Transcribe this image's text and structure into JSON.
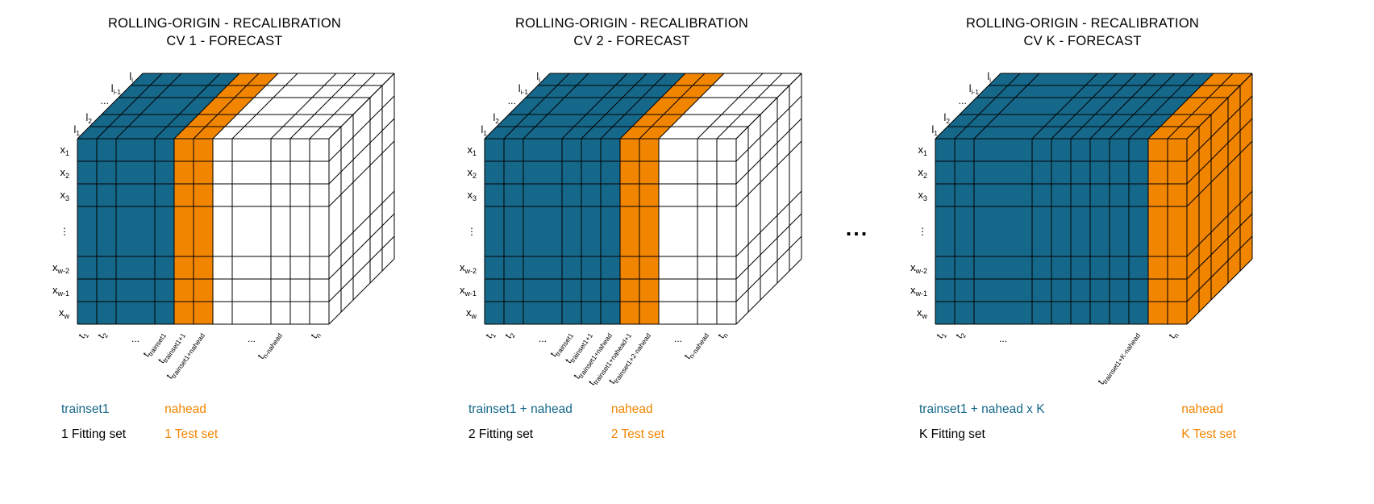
{
  "colors": {
    "train": "#16688a",
    "test": "#f28500",
    "empty": "#ffffff",
    "grid": "#000000"
  },
  "separator": "...",
  "shared": {
    "row_labels": [
      {
        "m": "x",
        "s": "1"
      },
      {
        "m": "x",
        "s": "2"
      },
      {
        "m": "x",
        "s": "3"
      },
      {
        "m": "⋮",
        "s": ""
      },
      {
        "m": "x",
        "s": "w-2"
      },
      {
        "m": "x",
        "s": "w-1"
      },
      {
        "m": "x",
        "s": "w"
      }
    ],
    "depth_labels": [
      {
        "m": "l",
        "s": "1"
      },
      {
        "m": "l",
        "s": "2"
      },
      {
        "m": "...",
        "s": ""
      },
      {
        "m": "l",
        "s": "i-1"
      },
      {
        "m": "l",
        "s": "i"
      }
    ]
  },
  "panels": [
    {
      "id": "cv1",
      "title_line1": "ROLLING-ORIGIN - RECALIBRATION",
      "title_line2": "CV 1 - FORECAST",
      "columns": [
        {
          "w": 1,
          "c": "train"
        },
        {
          "w": 1,
          "c": "train"
        },
        {
          "w": 2,
          "c": "train"
        },
        {
          "w": 1,
          "c": "train"
        },
        {
          "w": 1,
          "c": "test"
        },
        {
          "w": 1,
          "c": "test"
        },
        {
          "w": 1,
          "c": "empty"
        },
        {
          "w": 2,
          "c": "empty"
        },
        {
          "w": 1,
          "c": "empty"
        },
        {
          "w": 1,
          "c": "empty"
        },
        {
          "w": 1,
          "c": "empty"
        }
      ],
      "ticks": [
        {
          "m": "t",
          "s": "1",
          "col": 0
        },
        {
          "m": "t",
          "s": "2",
          "col": 1
        },
        {
          "m": "...",
          "s": "",
          "col": 2
        },
        {
          "m": "t",
          "s": "trainset1",
          "col": 3
        },
        {
          "m": "t",
          "s": "trainset1+1",
          "col": 4
        },
        {
          "m": "t",
          "s": "trainset1+nahead",
          "col": 5
        },
        {
          "m": "...",
          "s": "",
          "col": 7
        },
        {
          "m": "t",
          "s": "n-nahead",
          "col": 8
        },
        {
          "m": "t",
          "s": "n",
          "col": 10
        }
      ],
      "legend": {
        "train": "trainset1",
        "test": "nahead",
        "fitting": "1 Fitting set",
        "testing": "1 Test set"
      }
    },
    {
      "id": "cv2",
      "title_line1": "ROLLING-ORIGIN - RECALIBRATION",
      "title_line2": "CV 2 - FORECAST",
      "columns": [
        {
          "w": 1,
          "c": "train"
        },
        {
          "w": 1,
          "c": "train"
        },
        {
          "w": 2,
          "c": "train"
        },
        {
          "w": 1,
          "c": "train"
        },
        {
          "w": 1,
          "c": "train"
        },
        {
          "w": 1,
          "c": "train"
        },
        {
          "w": 1,
          "c": "test"
        },
        {
          "w": 1,
          "c": "test"
        },
        {
          "w": 2,
          "c": "empty"
        },
        {
          "w": 1,
          "c": "empty"
        },
        {
          "w": 1,
          "c": "empty"
        }
      ],
      "ticks": [
        {
          "m": "t",
          "s": "1",
          "col": 0
        },
        {
          "m": "t",
          "s": "2",
          "col": 1
        },
        {
          "m": "...",
          "s": "",
          "col": 2
        },
        {
          "m": "t",
          "s": "trainset1",
          "col": 3
        },
        {
          "m": "t",
          "s": "trainset1+1",
          "col": 4
        },
        {
          "m": "t",
          "s": "trainset1+nahead",
          "col": 5
        },
        {
          "m": "t",
          "s": "trainset1+nahead+1",
          "col": 6
        },
        {
          "m": "t",
          "s": "trainset1+2·nahead",
          "col": 7
        },
        {
          "m": "...",
          "s": "",
          "col": 8
        },
        {
          "m": "t",
          "s": "n-nahead",
          "col": 9
        },
        {
          "m": "t",
          "s": "n",
          "col": 10
        }
      ],
      "legend": {
        "train": "trainset1 + nahead",
        "test": "nahead",
        "fitting": "2 Fitting set",
        "testing": "2 Test set"
      }
    },
    {
      "id": "cvK",
      "title_line1": "ROLLING-ORIGIN - RECALIBRATION",
      "title_line2": "CV K - FORECAST",
      "columns": [
        {
          "w": 1,
          "c": "train"
        },
        {
          "w": 1,
          "c": "train"
        },
        {
          "w": 3,
          "c": "train"
        },
        {
          "w": 1,
          "c": "train"
        },
        {
          "w": 1,
          "c": "train"
        },
        {
          "w": 1,
          "c": "train"
        },
        {
          "w": 1,
          "c": "train"
        },
        {
          "w": 1,
          "c": "train"
        },
        {
          "w": 1,
          "c": "train"
        },
        {
          "w": 1,
          "c": "test"
        },
        {
          "w": 1,
          "c": "test"
        }
      ],
      "ticks": [
        {
          "m": "t",
          "s": "1",
          "col": 0
        },
        {
          "m": "t",
          "s": "2",
          "col": 1
        },
        {
          "m": "...",
          "s": "",
          "col": 2
        },
        {
          "m": "t",
          "s": "trainset1+K·nahead",
          "col": 8
        },
        {
          "m": "t",
          "s": "n",
          "col": 10
        }
      ],
      "legend": {
        "train": "trainset1 + nahead x K",
        "test": "nahead",
        "fitting": "K Fitting set",
        "testing": "K Test set"
      }
    }
  ]
}
